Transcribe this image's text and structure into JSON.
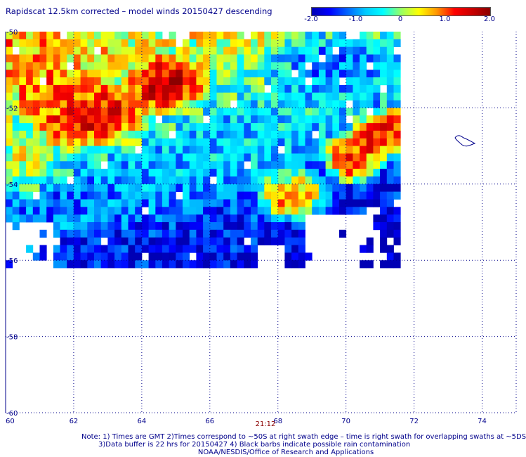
{
  "header": {
    "title": "Rapidscat 12.5km corrected – model winds 20150427 descending"
  },
  "colorbar": {
    "labels": [
      "-2.0",
      "-1.0",
      "0",
      "1.0",
      "2.0"
    ],
    "values": [
      -2.0,
      -1.0,
      0,
      1.0,
      2.0
    ],
    "range": [
      -2.0,
      2.0
    ],
    "stops": [
      "#0000b4",
      "#0000ff",
      "#0064ff",
      "#00c8ff",
      "#00ffff",
      "#96ff64",
      "#ffff00",
      "#ff9600",
      "#ff0000",
      "#c80000",
      "#8b0000"
    ]
  },
  "chart_data": {
    "type": "heatmap",
    "title": "Rapidscat 12.5km corrected – model winds 20150427 descending",
    "xlabel": "",
    "ylabel": "",
    "x_ticks": [
      "60",
      "62",
      "64",
      "66",
      "68",
      "70",
      "72",
      "74"
    ],
    "x_tick_values": [
      60,
      62,
      64,
      66,
      68,
      70,
      72,
      74
    ],
    "y_ticks": [
      "-50",
      "-52",
      "-54",
      "-56",
      "-58",
      "-60"
    ],
    "y_tick_values": [
      -50,
      -52,
      -54,
      -56,
      -58,
      -60
    ],
    "xlim": [
      60,
      75
    ],
    "ylim": [
      -60,
      -50
    ],
    "grid": true,
    "value_range": [
      -2.0,
      2.0
    ],
    "swath": {
      "lon_min": 60,
      "lon_max": 71.6,
      "lat_min": -56.2,
      "lat_max": -50
    },
    "regions": [
      {
        "lon": [
          61.0,
          64.0
        ],
        "lat": [
          -52.8,
          -51.6
        ],
        "value": 1.6
      },
      {
        "lon": [
          64.0,
          65.5
        ],
        "lat": [
          -51.8,
          -51.0
        ],
        "value": 1.8
      },
      {
        "lon": [
          60.3,
          62.0
        ],
        "lat": [
          -52.0,
          -51.0
        ],
        "value": 0.8
      },
      {
        "lon": [
          69.8,
          70.6
        ],
        "lat": [
          -53.6,
          -53.0
        ],
        "value": 1.7
      },
      {
        "lon": [
          70.7,
          71.6
        ],
        "lat": [
          -52.9,
          -52.4
        ],
        "value": 1.8
      },
      {
        "lon": [
          67.8,
          69.0
        ],
        "lat": [
          -54.6,
          -54.0
        ],
        "value": 1.2
      },
      {
        "lon": [
          60.0,
          61.2
        ],
        "lat": [
          -54.0,
          -53.0
        ],
        "value": 0.3
      },
      {
        "lon": [
          62.0,
          68.0
        ],
        "lat": [
          -56.0,
          -55.2
        ],
        "value": -1.7
      },
      {
        "lon": [
          60.5,
          63.5
        ],
        "lat": [
          -55.0,
          -54.3
        ],
        "value": -1.2
      },
      {
        "lon": [
          66.0,
          68.0
        ],
        "lat": [
          -53.5,
          -52.5
        ],
        "value": -0.8
      },
      {
        "lon": [
          68.0,
          71.5
        ],
        "lat": [
          -51.5,
          -50.2
        ],
        "value": -1.2
      }
    ],
    "time_labels": [
      {
        "lon": 67.4,
        "text": "21:12"
      }
    ]
  },
  "notes": {
    "line1": "Note: 1) Times are GMT 2)Times correspond to ~50S at right swath edge – time is right swath for overlapping swaths at ~5DS",
    "line2": "3)Data buffer is 22 hrs for 20150427 4) Black barbs indicate possible rain contamination",
    "line3": "NOAA/NESDIS/Office of Research and Applications"
  }
}
